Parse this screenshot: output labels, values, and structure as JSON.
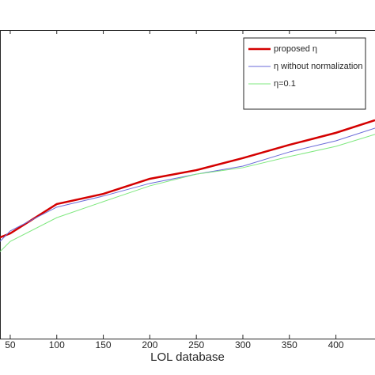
{
  "chart_data": {
    "type": "line",
    "x_label": "LOL database",
    "x": [
      39,
      50,
      100,
      150,
      200,
      250,
      300,
      350,
      400,
      442
    ],
    "series": [
      {
        "name": "proposed η",
        "color": "#d40000",
        "values": [
          0.328,
          0.341,
          0.436,
          0.469,
          0.518,
          0.546,
          0.585,
          0.628,
          0.667,
          0.708
        ]
      },
      {
        "name": "η without normalization",
        "color": "#6a6ad8",
        "values": [
          0.315,
          0.349,
          0.426,
          0.462,
          0.503,
          0.533,
          0.559,
          0.605,
          0.641,
          0.682
        ]
      },
      {
        "name": "η=0.1",
        "color": "#7fe87f",
        "values": [
          0.282,
          0.315,
          0.392,
          0.444,
          0.495,
          0.533,
          0.554,
          0.59,
          0.623,
          0.662
        ]
      }
    ],
    "xlim": [
      39,
      442
    ],
    "xticks": [
      50,
      100,
      150,
      200,
      250,
      300,
      350,
      400
    ],
    "ylim": [
      0,
      1
    ],
    "legend": "upper right"
  }
}
